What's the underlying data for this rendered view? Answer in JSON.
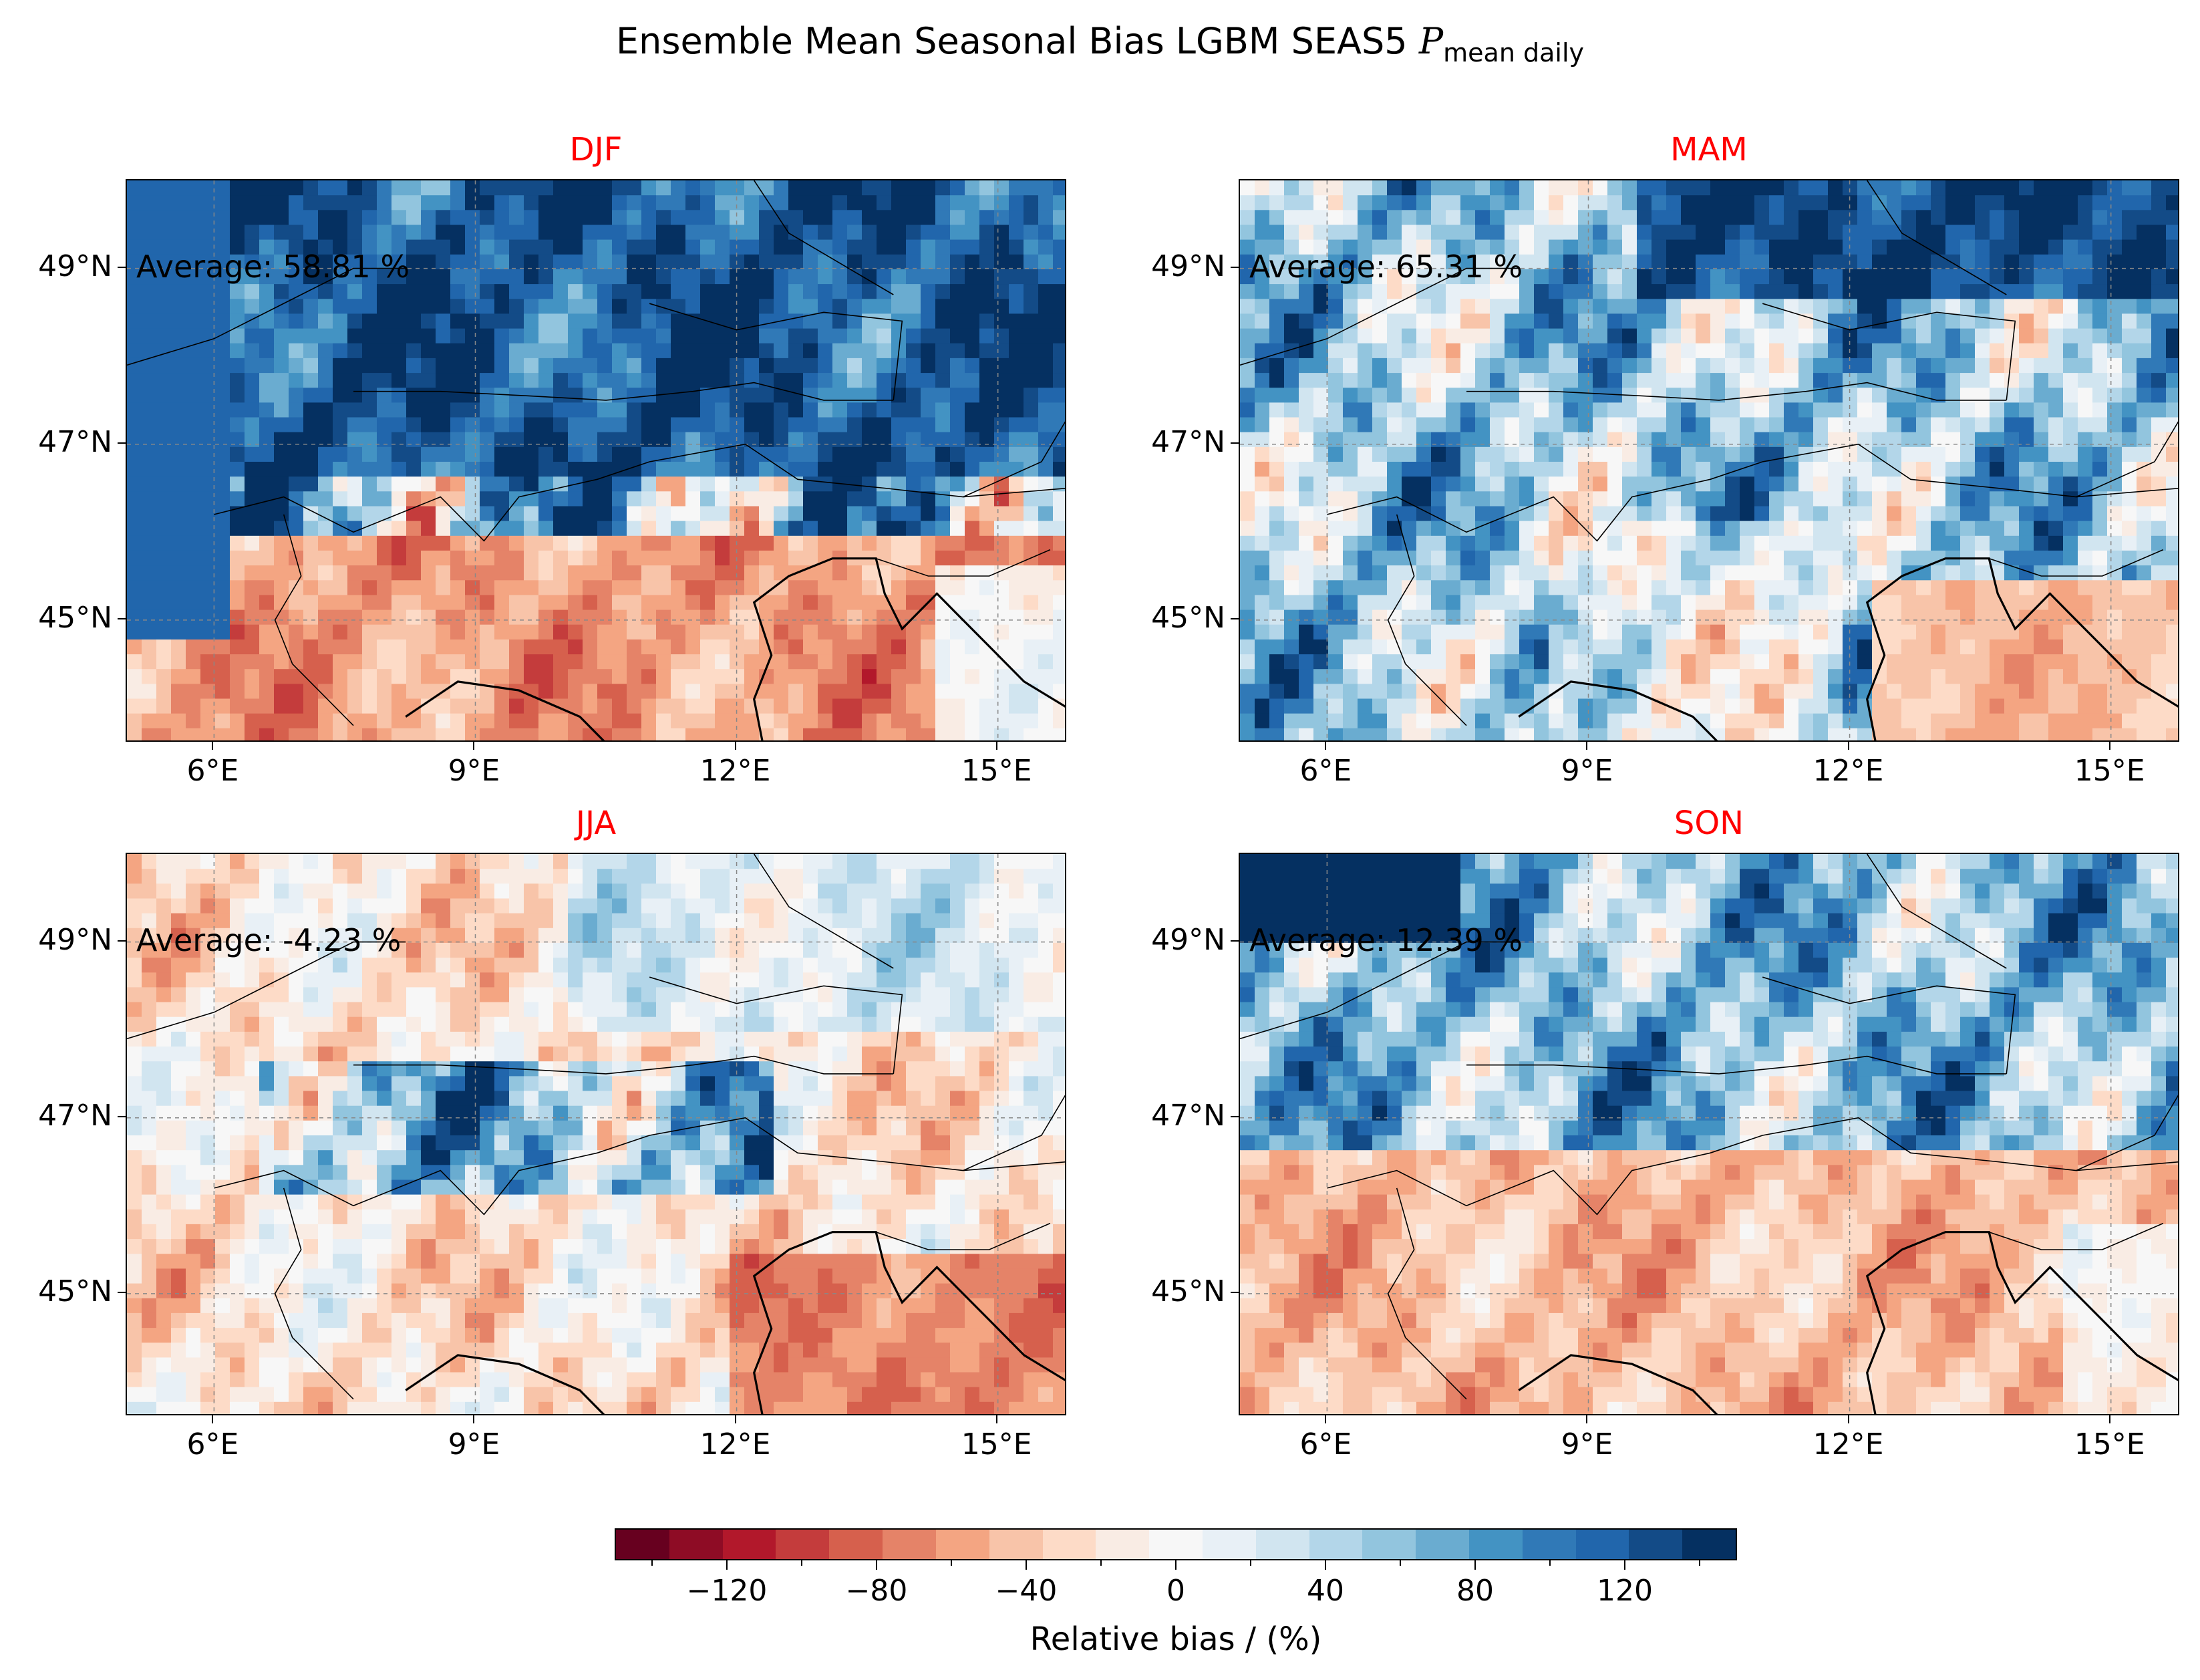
{
  "figure": {
    "title_main": "Ensemble Mean Seasonal Bias LGBM SEAS5 ",
    "title_symbol": "P",
    "title_subscript": "mean daily"
  },
  "panels": [
    {
      "season": "DJF",
      "average": "Average: 58.81 %",
      "pattern": "djf"
    },
    {
      "season": "MAM",
      "average": "Average: 65.31 %",
      "pattern": "mam"
    },
    {
      "season": "JJA",
      "average": "Average: -4.23 %",
      "pattern": "jja"
    },
    {
      "season": "SON",
      "average": "Average: 12.39 %",
      "pattern": "son"
    }
  ],
  "axes": {
    "lon_ticks": [
      "6°E",
      "9°E",
      "12°E",
      "15°E"
    ],
    "lat_ticks": [
      "49°N",
      "47°N",
      "45°N"
    ]
  },
  "colorbar": {
    "label": "Relative bias / (%)",
    "ticks": [
      "−120",
      "−80",
      "−40",
      "0",
      "40",
      "80",
      "120"
    ],
    "range": [
      -150,
      150
    ],
    "colormap": "RdBu",
    "colors": [
      "#67001f",
      "#8e0c25",
      "#b2182b",
      "#c43c3c",
      "#d6604d",
      "#e58368",
      "#f4a582",
      "#f8c4a9",
      "#fddbc7",
      "#f9ece4",
      "#f7f7f7",
      "#e8f0f6",
      "#d1e5f0",
      "#b3d6e9",
      "#92c5de",
      "#6aacd0",
      "#4393c3",
      "#3079b7",
      "#2166ac",
      "#134b87",
      "#053061"
    ]
  }
}
